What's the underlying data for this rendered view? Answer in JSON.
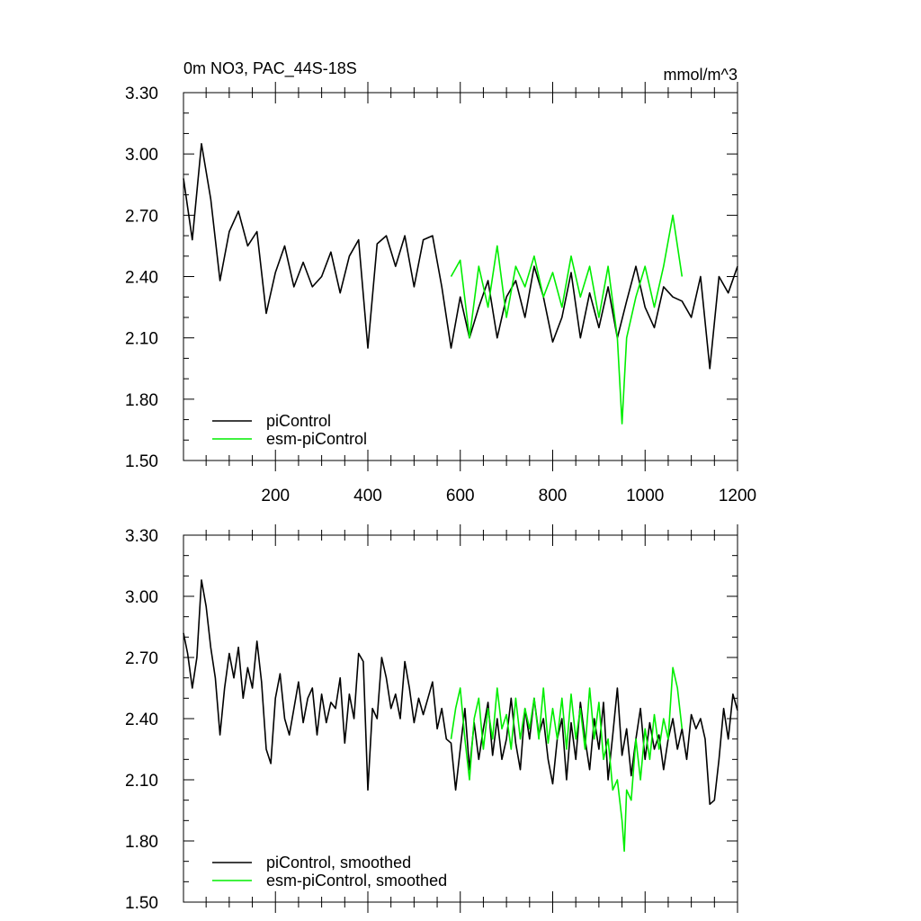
{
  "chart_data": [
    {
      "type": "line",
      "title": "0m NO3, PAC_44S-18S",
      "units": "mmol/m^3",
      "xlim": [
        1,
        1200
      ],
      "ylim": [
        1.5,
        3.3
      ],
      "x_ticks": [
        200,
        400,
        600,
        800,
        1000,
        1200
      ],
      "x_tick_labels": [
        "200",
        "400",
        "600",
        "800",
        "1000",
        "1200"
      ],
      "y_ticks": [
        1.5,
        1.8,
        2.1,
        2.4,
        2.7,
        3.0,
        3.3
      ],
      "y_tick_labels": [
        "1.50",
        "1.80",
        "2.10",
        "2.40",
        "2.70",
        "3.00",
        "3.30"
      ],
      "legend_position": "bottom-left",
      "series": [
        {
          "name": "piControl",
          "color": "#000000",
          "x": [
            1,
            20,
            40,
            60,
            80,
            100,
            120,
            140,
            160,
            180,
            200,
            220,
            240,
            260,
            280,
            300,
            320,
            340,
            360,
            380,
            400,
            420,
            440,
            460,
            480,
            500,
            520,
            540,
            560,
            580,
            600,
            620,
            640,
            660,
            680,
            700,
            720,
            740,
            760,
            780,
            800,
            820,
            840,
            860,
            880,
            900,
            920,
            940,
            960,
            980,
            1000,
            1020,
            1040,
            1060,
            1080,
            1100,
            1120,
            1140,
            1160,
            1180,
            1200
          ],
          "values": [
            2.88,
            2.58,
            3.05,
            2.78,
            2.38,
            2.62,
            2.72,
            2.55,
            2.62,
            2.22,
            2.42,
            2.55,
            2.35,
            2.47,
            2.35,
            2.4,
            2.52,
            2.32,
            2.5,
            2.58,
            2.05,
            2.56,
            2.6,
            2.45,
            2.6,
            2.35,
            2.58,
            2.6,
            2.35,
            2.05,
            2.3,
            2.1,
            2.25,
            2.38,
            2.1,
            2.3,
            2.38,
            2.2,
            2.45,
            2.3,
            2.08,
            2.2,
            2.42,
            2.1,
            2.32,
            2.15,
            2.35,
            2.1,
            2.28,
            2.45,
            2.25,
            2.15,
            2.35,
            2.3,
            2.28,
            2.2,
            2.4,
            1.95,
            2.4,
            2.32,
            2.45
          ]
        },
        {
          "name": "esm-piControl",
          "color": "#00ee00",
          "x": [
            580,
            600,
            620,
            640,
            660,
            680,
            700,
            720,
            740,
            760,
            780,
            800,
            820,
            840,
            860,
            880,
            900,
            920,
            940,
            950,
            960,
            980,
            1000,
            1020,
            1040,
            1060,
            1080
          ],
          "values": [
            2.4,
            2.48,
            2.1,
            2.45,
            2.25,
            2.55,
            2.2,
            2.45,
            2.35,
            2.5,
            2.3,
            2.42,
            2.25,
            2.5,
            2.3,
            2.45,
            2.2,
            2.45,
            2.1,
            1.68,
            2.1,
            2.3,
            2.45,
            2.25,
            2.45,
            2.7,
            2.4
          ]
        }
      ]
    },
    {
      "type": "line",
      "xlim": [
        1,
        1200
      ],
      "ylim": [
        1.5,
        3.3
      ],
      "x_ticks": [
        200,
        400,
        600,
        800,
        1000,
        1200
      ],
      "y_ticks": [
        1.5,
        1.8,
        2.1,
        2.4,
        2.7,
        3.0,
        3.3
      ],
      "y_tick_labels": [
        "1.50",
        "1.80",
        "2.10",
        "2.40",
        "2.70",
        "3.00",
        "3.30"
      ],
      "legend_position": "bottom-left",
      "series": [
        {
          "name": "piControl, smoothed",
          "color": "#000000",
          "x": [
            1,
            10,
            20,
            30,
            40,
            50,
            60,
            70,
            80,
            90,
            100,
            110,
            120,
            130,
            140,
            150,
            160,
            170,
            180,
            190,
            200,
            210,
            220,
            230,
            240,
            250,
            260,
            270,
            280,
            290,
            300,
            310,
            320,
            330,
            340,
            350,
            360,
            370,
            380,
            390,
            400,
            410,
            420,
            430,
            440,
            450,
            460,
            470,
            480,
            490,
            500,
            510,
            520,
            530,
            540,
            550,
            560,
            570,
            580,
            590,
            600,
            610,
            620,
            630,
            640,
            650,
            660,
            670,
            680,
            690,
            700,
            710,
            720,
            730,
            740,
            750,
            760,
            770,
            780,
            790,
            800,
            810,
            820,
            830,
            840,
            850,
            860,
            870,
            880,
            890,
            900,
            910,
            920,
            930,
            940,
            950,
            960,
            970,
            980,
            990,
            1000,
            1010,
            1020,
            1030,
            1040,
            1050,
            1060,
            1070,
            1080,
            1090,
            1100,
            1110,
            1120,
            1130,
            1140,
            1150,
            1160,
            1170,
            1180,
            1190,
            1200
          ],
          "values": [
            2.82,
            2.72,
            2.55,
            2.7,
            3.08,
            2.95,
            2.75,
            2.6,
            2.32,
            2.55,
            2.72,
            2.6,
            2.75,
            2.5,
            2.65,
            2.55,
            2.78,
            2.58,
            2.25,
            2.18,
            2.5,
            2.62,
            2.4,
            2.32,
            2.45,
            2.58,
            2.38,
            2.5,
            2.55,
            2.32,
            2.52,
            2.38,
            2.48,
            2.45,
            2.6,
            2.28,
            2.52,
            2.4,
            2.72,
            2.68,
            2.05,
            2.45,
            2.4,
            2.7,
            2.6,
            2.45,
            2.52,
            2.4,
            2.68,
            2.55,
            2.38,
            2.5,
            2.42,
            2.5,
            2.58,
            2.35,
            2.45,
            2.3,
            2.28,
            2.05,
            2.25,
            2.45,
            2.15,
            2.38,
            2.2,
            2.35,
            2.48,
            2.22,
            2.4,
            2.2,
            2.3,
            2.5,
            2.28,
            2.15,
            2.45,
            2.3,
            2.5,
            2.32,
            2.4,
            2.2,
            2.08,
            2.3,
            2.4,
            2.1,
            2.38,
            2.2,
            2.48,
            2.3,
            2.15,
            2.4,
            2.25,
            2.48,
            2.1,
            2.32,
            2.55,
            2.22,
            2.35,
            2.12,
            2.3,
            2.45,
            2.2,
            2.38,
            2.25,
            2.32,
            2.15,
            2.3,
            2.4,
            2.25,
            2.35,
            2.2,
            2.42,
            2.35,
            2.4,
            2.3,
            1.98,
            2.0,
            2.2,
            2.45,
            2.3,
            2.52,
            2.44
          ]
        },
        {
          "name": "esm-piControl, smoothed",
          "color": "#00ee00",
          "x": [
            580,
            590,
            600,
            610,
            620,
            630,
            640,
            650,
            660,
            670,
            680,
            690,
            700,
            710,
            720,
            730,
            740,
            750,
            760,
            770,
            780,
            790,
            800,
            810,
            820,
            830,
            840,
            850,
            860,
            870,
            880,
            890,
            900,
            910,
            920,
            930,
            940,
            950,
            955,
            960,
            970,
            980,
            990,
            1000,
            1010,
            1020,
            1030,
            1040,
            1050,
            1060,
            1070,
            1080
          ],
          "values": [
            2.3,
            2.45,
            2.55,
            2.3,
            2.1,
            2.4,
            2.5,
            2.25,
            2.45,
            2.3,
            2.55,
            2.35,
            2.42,
            2.25,
            2.5,
            2.3,
            2.45,
            2.35,
            2.5,
            2.3,
            2.55,
            2.28,
            2.45,
            2.3,
            2.5,
            2.25,
            2.52,
            2.3,
            2.45,
            2.25,
            2.55,
            2.3,
            2.48,
            2.2,
            2.3,
            2.05,
            2.1,
            1.9,
            1.75,
            2.05,
            2.0,
            2.3,
            2.1,
            2.35,
            2.2,
            2.42,
            2.25,
            2.4,
            2.3,
            2.65,
            2.55,
            2.35
          ]
        }
      ]
    }
  ]
}
